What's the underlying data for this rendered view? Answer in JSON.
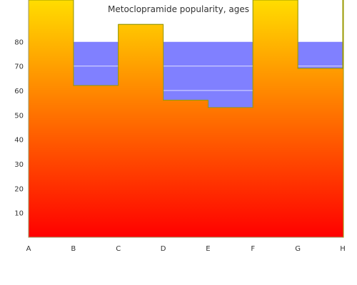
{
  "chart_data": {
    "type": "area",
    "title": "Metoclopramide popularity, ages",
    "xlabel": "",
    "ylabel": "",
    "categories": [
      "A",
      "B",
      "C",
      "D",
      "E",
      "F",
      "G",
      "H"
    ],
    "y_ticks": [
      10,
      20,
      30,
      40,
      50,
      60,
      70,
      80
    ],
    "ylim": [
      0,
      97
    ],
    "band": {
      "from": 0,
      "to": 80,
      "color": "#8080ff"
    },
    "grid": true,
    "legend": "none",
    "series": [
      {
        "values": [
          97,
          62,
          87,
          56,
          53,
          97,
          69,
          97
        ]
      }
    ],
    "gradient": {
      "top": "#ffdd00",
      "bottom": "#ff0000"
    },
    "outline_color": "#999900"
  }
}
